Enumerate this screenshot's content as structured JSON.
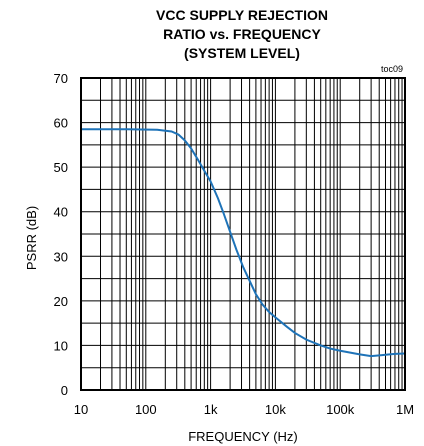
{
  "chart_data": {
    "type": "line",
    "title_lines": [
      "VCC SUPPLY REJECTION",
      "RATIO vs. FREQUENCY",
      "(SYSTEM LEVEL)"
    ],
    "annotation": "toc09",
    "xlabel": "FREQUENCY (Hz)",
    "ylabel": "PSRR (dB)",
    "xscale": "log",
    "xlim": [
      10,
      1000000
    ],
    "ylim": [
      0,
      70
    ],
    "x_tick_labels": [
      "10",
      "100",
      "1k",
      "10k",
      "100k",
      "1M"
    ],
    "y_tick_labels": [
      "0",
      "10",
      "20",
      "30",
      "40",
      "50",
      "60",
      "70"
    ],
    "grid": true,
    "line_color": "#1e73b8",
    "series": [
      {
        "x": [
          10,
          50,
          150,
          250,
          320,
          400,
          500,
          630,
          800,
          1000,
          1300,
          1600,
          2000,
          2500,
          3200,
          4000,
          5000,
          6300,
          8000,
          10000,
          15000,
          20000,
          30000,
          50000,
          70000,
          100000,
          200000,
          300000,
          500000,
          700000,
          1000000
        ],
        "y": [
          58.5,
          58.5,
          58.4,
          58.0,
          57.3,
          56.0,
          54.2,
          51.8,
          49.2,
          46.8,
          43.0,
          39.5,
          35.5,
          31.5,
          27.5,
          24.5,
          21.5,
          19.2,
          17.5,
          16.3,
          14.2,
          12.8,
          11.3,
          10.0,
          9.3,
          8.8,
          8.0,
          7.6,
          7.9,
          8.1,
          8.2
        ]
      }
    ]
  }
}
